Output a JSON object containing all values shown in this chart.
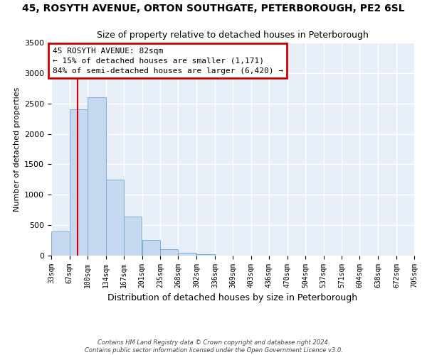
{
  "title": "45, ROSYTH AVENUE, ORTON SOUTHGATE, PETERBOROUGH, PE2 6SL",
  "subtitle": "Size of property relative to detached houses in Peterborough",
  "xlabel": "Distribution of detached houses by size in Peterborough",
  "ylabel": "Number of detached properties",
  "bar_color": "#c5d8f0",
  "bar_edgecolor": "#7aafd4",
  "plot_bg_color": "#e8eef8",
  "fig_bg_color": "#ffffff",
  "grid_color": "#ffffff",
  "bin_edges": [
    33,
    67,
    100,
    134,
    167,
    201,
    235,
    268,
    302,
    336,
    369,
    403,
    436,
    470,
    504,
    537,
    571,
    604,
    638,
    672,
    705
  ],
  "bar_heights": [
    400,
    2400,
    2600,
    1250,
    640,
    260,
    100,
    50,
    20,
    0,
    0,
    0,
    0,
    0,
    0,
    0,
    0,
    0,
    0,
    0
  ],
  "property_line_x": 82,
  "ylim": [
    0,
    3500
  ],
  "yticks": [
    0,
    500,
    1000,
    1500,
    2000,
    2500,
    3000,
    3500
  ],
  "annotation_title": "45 ROSYTH AVENUE: 82sqm",
  "annotation_line1": "← 15% of detached houses are smaller (1,171)",
  "annotation_line2": "84% of semi-detached houses are larger (6,420) →",
  "footer_line1": "Contains HM Land Registry data © Crown copyright and database right 2024.",
  "footer_line2": "Contains public sector information licensed under the Open Government Licence v3.0.",
  "annotation_box_color": "#cc0000",
  "property_line_color": "#cc0000"
}
